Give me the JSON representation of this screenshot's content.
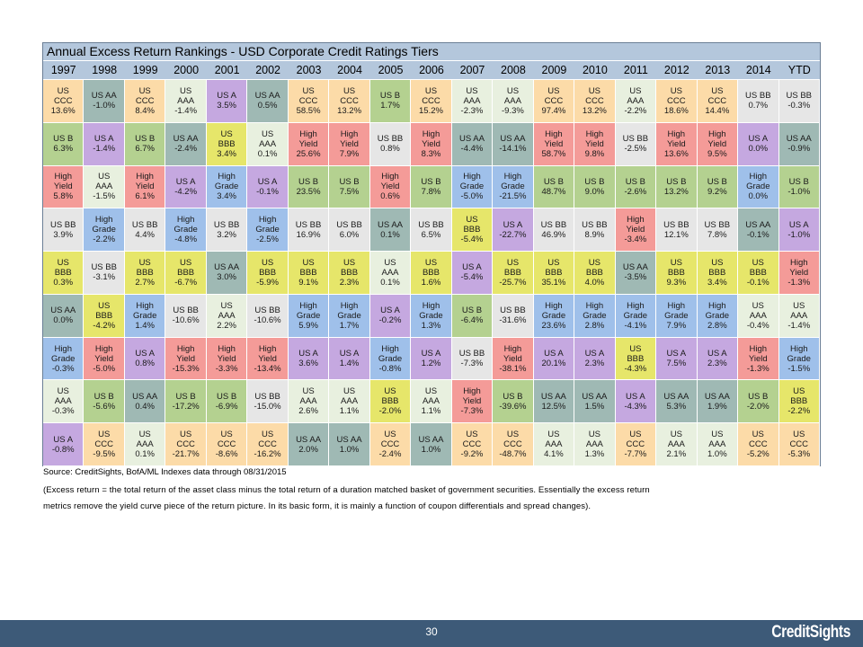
{
  "title": "Annual Excess Return Rankings - USD Corporate Credit Ratings Tiers",
  "colors": {
    "US CCC": "#fcdba8",
    "US B": "#b4d190",
    "High Yield": "#f49b98",
    "US BB": "#e6e6e6",
    "US BBB": "#e6e66a",
    "US AA": "#9fb9b4",
    "High Grade": "#9fc0ea",
    "US AAA": "#e8f0df",
    "US A": "#c5a8e0",
    "header": "#b4c7dc",
    "footer": "#3d5a78"
  },
  "chart_data": {
    "type": "table",
    "columns": [
      "1997",
      "1998",
      "1999",
      "2000",
      "2001",
      "2002",
      "2003",
      "2004",
      "2005",
      "2006",
      "2007",
      "2008",
      "2009",
      "2010",
      "2011",
      "2012",
      "2013",
      "2014",
      "YTD"
    ],
    "rankings": [
      [
        [
          "US CCC",
          "13.6%"
        ],
        [
          "US AA",
          "-1.0%"
        ],
        [
          "US CCC",
          "8.4%"
        ],
        [
          "US AAA",
          "-1.4%"
        ],
        [
          "US A",
          "3.5%"
        ],
        [
          "US AA",
          "0.5%"
        ],
        [
          "US CCC",
          "58.5%"
        ],
        [
          "US CCC",
          "13.2%"
        ],
        [
          "US B",
          "1.7%"
        ],
        [
          "US CCC",
          "15.2%"
        ],
        [
          "US AAA",
          "-2.3%"
        ],
        [
          "US AAA",
          "-9.3%"
        ],
        [
          "US CCC",
          "97.4%"
        ],
        [
          "US CCC",
          "13.2%"
        ],
        [
          "US AAA",
          "-2.2%"
        ],
        [
          "US CCC",
          "18.6%"
        ],
        [
          "US CCC",
          "14.4%"
        ],
        [
          "US BB",
          "0.7%"
        ],
        [
          "US BB",
          "-0.3%"
        ]
      ],
      [
        [
          "US B",
          "6.3%"
        ],
        [
          "US A",
          "-1.4%"
        ],
        [
          "US B",
          "6.7%"
        ],
        [
          "US AA",
          "-2.4%"
        ],
        [
          "US BBB",
          "3.4%"
        ],
        [
          "US AAA",
          "0.1%"
        ],
        [
          "High Yield",
          "25.6%"
        ],
        [
          "High Yield",
          "7.9%"
        ],
        [
          "US BB",
          "0.8%"
        ],
        [
          "High Yield",
          "8.3%"
        ],
        [
          "US AA",
          "-4.4%"
        ],
        [
          "US AA",
          "-14.1%"
        ],
        [
          "High Yield",
          "58.7%"
        ],
        [
          "High Yield",
          "9.8%"
        ],
        [
          "US BB",
          "-2.5%"
        ],
        [
          "High Yield",
          "13.6%"
        ],
        [
          "High Yield",
          "9.5%"
        ],
        [
          "US A",
          "0.0%"
        ],
        [
          "US AA",
          "-0.9%"
        ]
      ],
      [
        [
          "High Yield",
          "5.8%"
        ],
        [
          "US AAA",
          "-1.5%"
        ],
        [
          "High Yield",
          "6.1%"
        ],
        [
          "US A",
          "-4.2%"
        ],
        [
          "High Grade",
          "3.4%"
        ],
        [
          "US A",
          "-0.1%"
        ],
        [
          "US B",
          "23.5%"
        ],
        [
          "US B",
          "7.5%"
        ],
        [
          "High Yield",
          "0.6%"
        ],
        [
          "US B",
          "7.8%"
        ],
        [
          "High Grade",
          "-5.0%"
        ],
        [
          "High Grade",
          "-21.5%"
        ],
        [
          "US B",
          "48.7%"
        ],
        [
          "US B",
          "9.0%"
        ],
        [
          "US B",
          "-2.6%"
        ],
        [
          "US B",
          "13.2%"
        ],
        [
          "US B",
          "9.2%"
        ],
        [
          "High Grade",
          "0.0%"
        ],
        [
          "US B",
          "-1.0%"
        ]
      ],
      [
        [
          "US BB",
          "3.9%"
        ],
        [
          "High Grade",
          "-2.2%"
        ],
        [
          "US BB",
          "4.4%"
        ],
        [
          "High Grade",
          "-4.8%"
        ],
        [
          "US BB",
          "3.2%"
        ],
        [
          "High Grade",
          "-2.5%"
        ],
        [
          "US BB",
          "16.9%"
        ],
        [
          "US BB",
          "6.0%"
        ],
        [
          "US AA",
          "0.1%"
        ],
        [
          "US BB",
          "6.5%"
        ],
        [
          "US BBB",
          "-5.4%"
        ],
        [
          "US A",
          "-22.7%"
        ],
        [
          "US BB",
          "46.9%"
        ],
        [
          "US BB",
          "8.9%"
        ],
        [
          "High Yield",
          "-3.4%"
        ],
        [
          "US BB",
          "12.1%"
        ],
        [
          "US BB",
          "7.8%"
        ],
        [
          "US AA",
          "-0.1%"
        ],
        [
          "US A",
          "-1.0%"
        ]
      ],
      [
        [
          "US BBB",
          "0.3%"
        ],
        [
          "US BB",
          "-3.1%"
        ],
        [
          "US BBB",
          "2.7%"
        ],
        [
          "US BBB",
          "-6.7%"
        ],
        [
          "US AA",
          "3.0%"
        ],
        [
          "US BBB",
          "-5.9%"
        ],
        [
          "US BBB",
          "9.1%"
        ],
        [
          "US BBB",
          "2.3%"
        ],
        [
          "US AAA",
          "0.1%"
        ],
        [
          "US BBB",
          "1.6%"
        ],
        [
          "US A",
          "-5.4%"
        ],
        [
          "US BBB",
          "-25.7%"
        ],
        [
          "US BBB",
          "35.1%"
        ],
        [
          "US BBB",
          "4.0%"
        ],
        [
          "US AA",
          "-3.5%"
        ],
        [
          "US BBB",
          "9.3%"
        ],
        [
          "US BBB",
          "3.4%"
        ],
        [
          "US BBB",
          "-0.1%"
        ],
        [
          "High Yield",
          "-1.3%"
        ]
      ],
      [
        [
          "US AA",
          "0.0%"
        ],
        [
          "US BBB",
          "-4.2%"
        ],
        [
          "High Grade",
          "1.4%"
        ],
        [
          "US BB",
          "-10.6%"
        ],
        [
          "US AAA",
          "2.2%"
        ],
        [
          "US BB",
          "-10.6%"
        ],
        [
          "High Grade",
          "5.9%"
        ],
        [
          "High Grade",
          "1.7%"
        ],
        [
          "US A",
          "-0.2%"
        ],
        [
          "High Grade",
          "1.3%"
        ],
        [
          "US B",
          "-6.4%"
        ],
        [
          "US BB",
          "-31.6%"
        ],
        [
          "High Grade",
          "23.6%"
        ],
        [
          "High Grade",
          "2.8%"
        ],
        [
          "High Grade",
          "-4.1%"
        ],
        [
          "High Grade",
          "7.9%"
        ],
        [
          "High Grade",
          "2.8%"
        ],
        [
          "US AAA",
          "-0.4%"
        ],
        [
          "US AAA",
          "-1.4%"
        ]
      ],
      [
        [
          "High Grade",
          "-0.3%"
        ],
        [
          "High Yield",
          "-5.0%"
        ],
        [
          "US A",
          "0.8%"
        ],
        [
          "High Yield",
          "-15.3%"
        ],
        [
          "High Yield",
          "-3.3%"
        ],
        [
          "High Yield",
          "-13.4%"
        ],
        [
          "US A",
          "3.6%"
        ],
        [
          "US A",
          "1.4%"
        ],
        [
          "High Grade",
          "-0.8%"
        ],
        [
          "US A",
          "1.2%"
        ],
        [
          "US BB",
          "-7.3%"
        ],
        [
          "High Yield",
          "-38.1%"
        ],
        [
          "US A",
          "20.1%"
        ],
        [
          "US A",
          "2.3%"
        ],
        [
          "US BBB",
          "-4.3%"
        ],
        [
          "US A",
          "7.5%"
        ],
        [
          "US A",
          "2.3%"
        ],
        [
          "High Yield",
          "-1.3%"
        ],
        [
          "High Grade",
          "-1.5%"
        ]
      ],
      [
        [
          "US AAA",
          "-0.3%"
        ],
        [
          "US B",
          "-5.6%"
        ],
        [
          "US AA",
          "0.4%"
        ],
        [
          "US B",
          "-17.2%"
        ],
        [
          "US B",
          "-6.9%"
        ],
        [
          "US BB",
          "-15.0%"
        ],
        [
          "US AAA",
          "2.6%"
        ],
        [
          "US AAA",
          "1.1%"
        ],
        [
          "US BBB",
          "-2.0%"
        ],
        [
          "US AAA",
          "1.1%"
        ],
        [
          "High Yield",
          "-7.3%"
        ],
        [
          "US B",
          "-39.6%"
        ],
        [
          "US AA",
          "12.5%"
        ],
        [
          "US AA",
          "1.5%"
        ],
        [
          "US A",
          "-4.3%"
        ],
        [
          "US AA",
          "5.3%"
        ],
        [
          "US AA",
          "1.9%"
        ],
        [
          "US B",
          "-2.0%"
        ],
        [
          "US BBB",
          "-2.2%"
        ]
      ],
      [
        [
          "US A",
          "-0.8%"
        ],
        [
          "US CCC",
          "-9.5%"
        ],
        [
          "US AAA",
          "0.1%"
        ],
        [
          "US CCC",
          "-21.7%"
        ],
        [
          "US CCC",
          "-8.6%"
        ],
        [
          "US CCC",
          "-16.2%"
        ],
        [
          "US AA",
          "2.0%"
        ],
        [
          "US AA",
          "1.0%"
        ],
        [
          "US CCC",
          "-2.4%"
        ],
        [
          "US AA",
          "1.0%"
        ],
        [
          "US CCC",
          "-9.2%"
        ],
        [
          "US CCC",
          "-48.7%"
        ],
        [
          "US AAA",
          "4.1%"
        ],
        [
          "US AAA",
          "1.3%"
        ],
        [
          "US CCC",
          "-7.7%"
        ],
        [
          "US AAA",
          "2.1%"
        ],
        [
          "US AAA",
          "1.0%"
        ],
        [
          "US CCC",
          "-5.2%"
        ],
        [
          "US CCC",
          "-5.3%"
        ]
      ]
    ]
  },
  "source": "Source: CreditSights, BofA/ML Indexes   data through 08/31/2015",
  "notes": [
    "(Excess return = the total return of the asset class minus the total return of a duration matched basket of government securities. Essentially the excess return",
    "metrics remove the yield curve piece of the return picture. In its basic form, it is mainly a function of coupon differentials and spread changes)."
  ],
  "footer": {
    "page_number": "30",
    "logo": "CreditSights"
  }
}
